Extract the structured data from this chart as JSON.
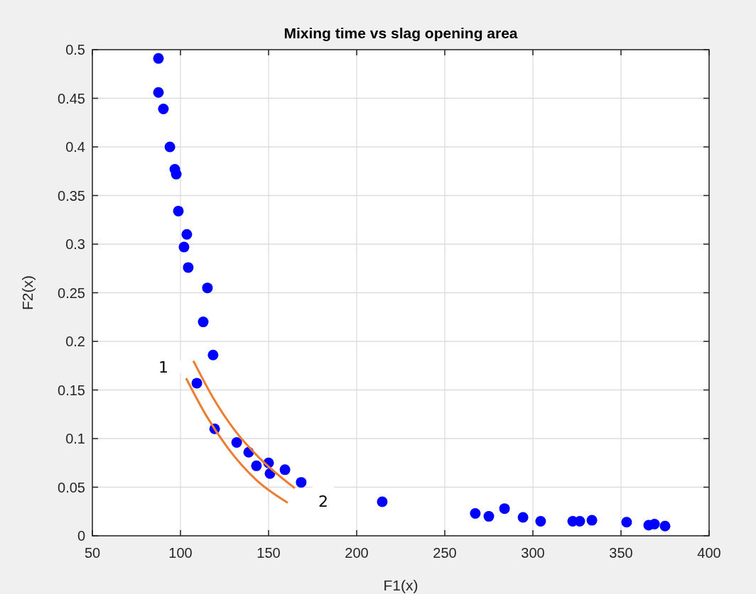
{
  "chart_data": {
    "type": "scatter",
    "title": "Mixing time vs slag opening area",
    "xlabel": "F1(x)",
    "ylabel": "F2(x)",
    "x": [
      87.5,
      87.5,
      90.3,
      94,
      96.8,
      97.6,
      98.8,
      103.6,
      102,
      104.4,
      115.3,
      112.9,
      118.5,
      109.3,
      119.4,
      131.9,
      138.7,
      143.1,
      150,
      150.8,
      159.3,
      168.5,
      214.5,
      267.3,
      275,
      283.9,
      294.4,
      304.4,
      322.6,
      326.6,
      333.5,
      353.2,
      365.7,
      369,
      375
    ],
    "series": [
      {
        "color": "#0000ff",
        "marker": "circle",
        "values": [
          0.491,
          0.456,
          0.439,
          0.4,
          0.377,
          0.372,
          0.334,
          0.31,
          0.297,
          0.276,
          0.255,
          0.22,
          0.186,
          0.157,
          0.11,
          0.096,
          0.086,
          0.072,
          0.075,
          0.064,
          0.068,
          0.055,
          0.035,
          0.023,
          0.02,
          0.028,
          0.019,
          0.015,
          0.015,
          0.015,
          0.016,
          0.014,
          0.011,
          0.012,
          0.01
        ]
      },
      {
        "type": "line",
        "marker": "none",
        "color": "#ed7d31",
        "x": [
          107.3,
          118.5,
          130.6,
          144.8,
          164.9
        ],
        "values": [
          0.18,
          0.142,
          0.109,
          0.08,
          0.049
        ]
      },
      {
        "type": "line",
        "marker": "none",
        "color": "#ed7d31",
        "x": [
          103.2,
          114.5,
          126.6,
          142.7,
          160.9
        ],
        "values": [
          0.162,
          0.124,
          0.091,
          0.058,
          0.034
        ]
      }
    ],
    "xlim": [
      50,
      400
    ],
    "xticks": [
      50,
      100,
      150,
      200,
      250,
      300,
      350,
      400
    ],
    "ylim": [
      0,
      0.5
    ],
    "yticks": [
      {
        "value": 0,
        "label": "0"
      },
      {
        "value": 0.05,
        "label": "0.05"
      },
      {
        "value": 0.1,
        "label": "0.1"
      },
      {
        "value": 0.15,
        "label": "0.15"
      },
      {
        "value": 0.2,
        "label": "0.2"
      },
      {
        "value": 0.25,
        "label": "0.25"
      },
      {
        "value": 0.3,
        "label": "0.3"
      },
      {
        "value": 0.35,
        "label": "0.35"
      },
      {
        "value": 0.4,
        "label": "0.4"
      },
      {
        "value": 0.45,
        "label": "0.45"
      },
      {
        "value": 0.5,
        "label": "0.5"
      }
    ],
    "grid": true,
    "annotations": [
      "1",
      "2"
    ]
  }
}
